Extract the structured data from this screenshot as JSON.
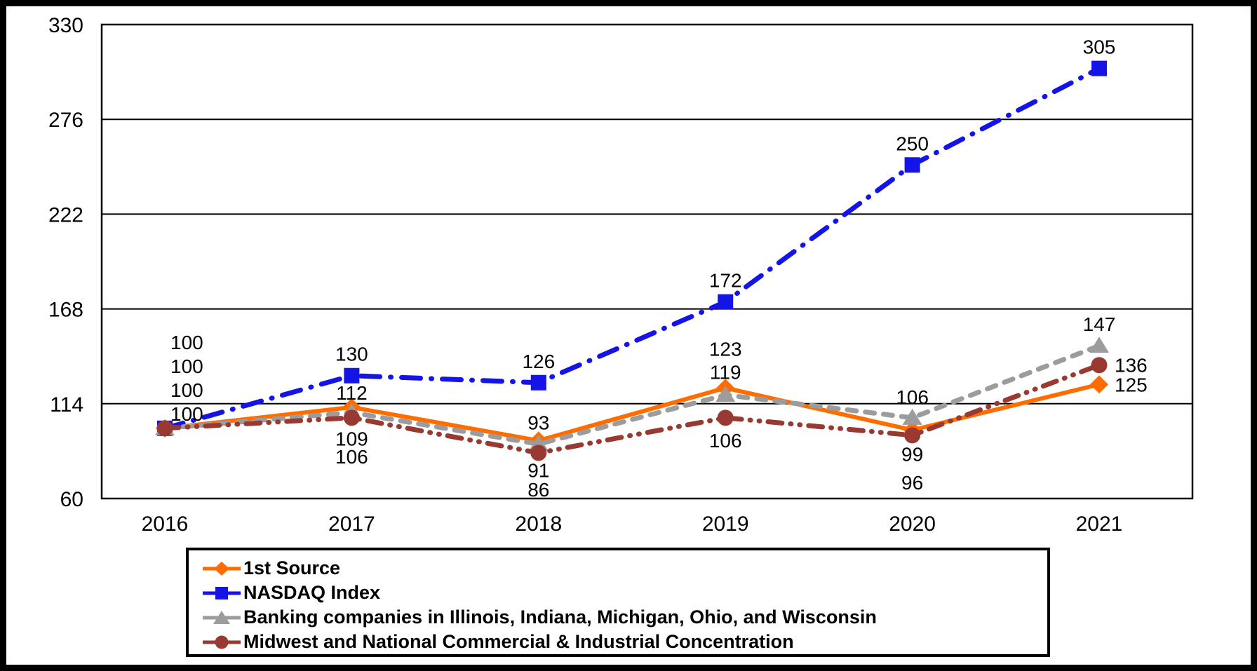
{
  "page": {
    "background_color": "#ffffff",
    "frame_color": "#000000"
  },
  "chart_data": {
    "type": "line",
    "title": "",
    "categories": [
      "2016",
      "2017",
      "2018",
      "2019",
      "2020",
      "2021"
    ],
    "series": [
      {
        "name": "1st Source",
        "color": "#FF6D00",
        "marker": "diamond",
        "line_style": "solid",
        "values": [
          100,
          112,
          93,
          123,
          99,
          125
        ]
      },
      {
        "name": "NASDAQ Index",
        "color": "#1414E6",
        "marker": "square",
        "line_style": "dash-dot",
        "values": [
          100,
          130,
          126,
          172,
          250,
          305
        ]
      },
      {
        "name": "Banking companies in Illinois, Indiana, Michigan, Ohio, and Wisconsin",
        "color": "#9C9C9C",
        "marker": "triangle",
        "line_style": "dashed",
        "values": [
          100,
          109,
          91,
          119,
          106,
          147
        ]
      },
      {
        "name": "Midwest and National Commercial & Industrial Concentration",
        "color": "#993A32",
        "marker": "circle",
        "line_style": "dash-dot-dot",
        "values": [
          100,
          106,
          86,
          106,
          96,
          136
        ]
      }
    ],
    "y_axis": {
      "min": 60,
      "max": 330,
      "ticks": [
        60,
        114,
        168,
        222,
        276,
        330
      ]
    },
    "x_axis": {
      "labels": [
        "2016",
        "2017",
        "2018",
        "2019",
        "2020",
        "2021"
      ]
    },
    "data_labels_shown": true,
    "grid": "horizontal",
    "grid_color": "#000000",
    "text_color": "#000000",
    "legend_position": "bottom-left-box"
  }
}
